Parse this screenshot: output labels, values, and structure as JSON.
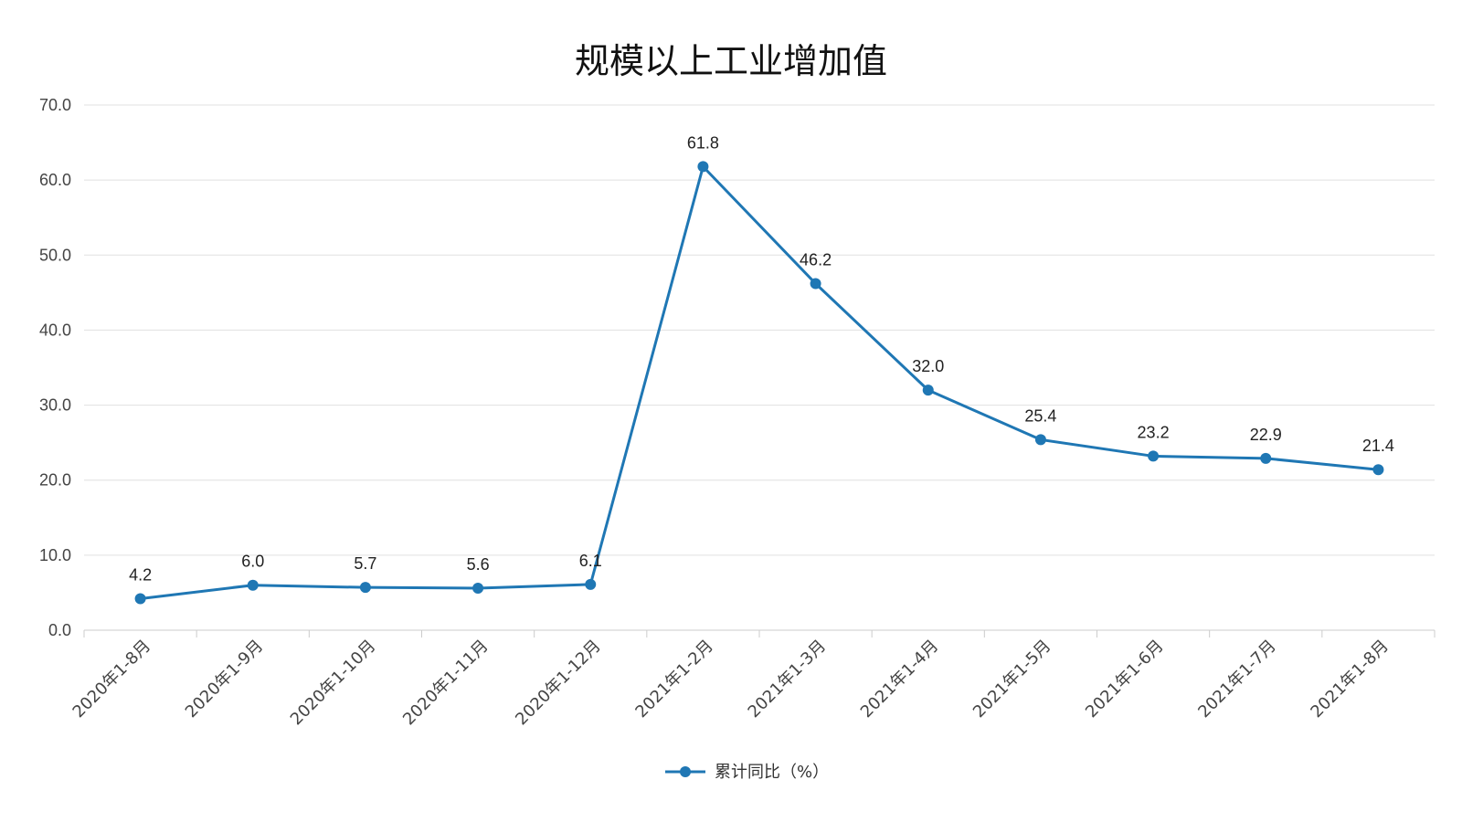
{
  "chart_data": {
    "type": "line",
    "title": "规模以上工业增加值",
    "xlabel": "",
    "ylabel": "",
    "categories": [
      "2020年1-8月",
      "2020年1-9月",
      "2020年1-10月",
      "2020年1-11月",
      "2020年1-12月",
      "2021年1-2月",
      "2021年1-3月",
      "2021年1-4月",
      "2021年1-5月",
      "2021年1-6月",
      "2021年1-7月",
      "2021年1-8月"
    ],
    "series": [
      {
        "name": "累计同比（%）",
        "values": [
          4.2,
          6.0,
          5.7,
          5.6,
          6.1,
          61.8,
          46.2,
          32.0,
          25.4,
          23.2,
          22.9,
          21.4
        ],
        "labels": [
          "4.2",
          "6.0",
          "5.7",
          "5.6",
          "6.1",
          "61.8",
          "46.2",
          "32.0",
          "25.4",
          "23.2",
          "22.9",
          "21.4"
        ],
        "color": "#1f77b4"
      }
    ],
    "ylim": [
      0,
      70
    ],
    "yticks": [
      "0.0",
      "10.0",
      "20.0",
      "30.0",
      "40.0",
      "50.0",
      "60.0",
      "70.0"
    ],
    "grid": true,
    "legend_position": "bottom"
  }
}
